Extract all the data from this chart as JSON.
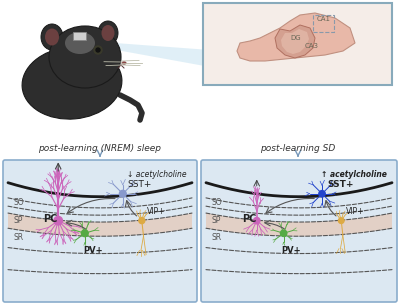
{
  "bg_color": "#ffffff",
  "panel_bg": "#dce8f2",
  "panel_border": "#8aadcc",
  "sleep_label": "post-learning (NREM) sleep",
  "sd_label": "post-learning SD",
  "sleep_ach": "↓ acetylcholine",
  "sd_ach": "↑ acetylcholine",
  "layer_so": "SO",
  "layer_sp": "SP",
  "layer_sr": "SR",
  "pc_label": "PC",
  "pv_label": "PV+",
  "sst_label": "SST+",
  "vip_label": "VIP+",
  "pc_color": "#cc66bb",
  "pv_color": "#55aa44",
  "sst_color_sleep": "#8899cc",
  "sst_color_sd": "#2244cc",
  "vip_color": "#ddaa44",
  "layer_band_color": "#e5c8b8",
  "text_color": "#333333",
  "brain_skin": "#e8b8a8",
  "brain_outline": "#c09080",
  "mouse_body": "#2d2d2d",
  "mouse_ear_inner": "#6b4040"
}
